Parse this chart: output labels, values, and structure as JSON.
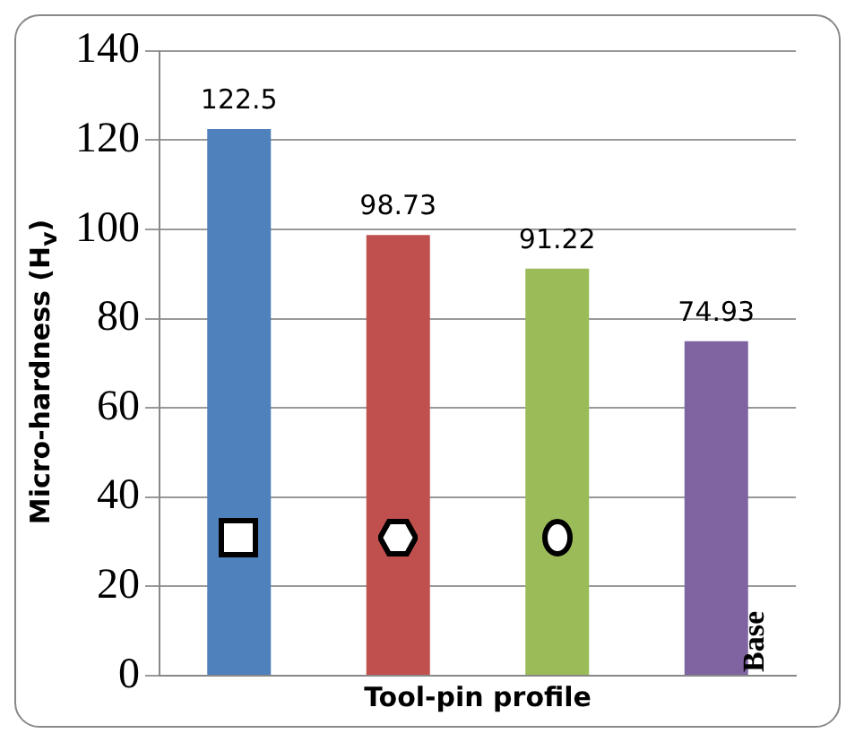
{
  "chart_data": {
    "type": "bar",
    "xlabel": "Tool-pin profile",
    "ylabel": "Micro-hardness (H$_{v}$)",
    "categories": [
      null,
      null,
      null,
      "Base"
    ],
    "values": [
      122.5,
      98.73,
      91.22,
      74.93
    ],
    "colors": [
      "#4f81bd",
      "#c0504d",
      "#9bbb59",
      "#8064a2"
    ],
    "ylim": [
      0,
      140
    ],
    "yticks": [
      0,
      20,
      40,
      60,
      80,
      100,
      120,
      140
    ],
    "grid": "y",
    "data_labels": true
  }
}
